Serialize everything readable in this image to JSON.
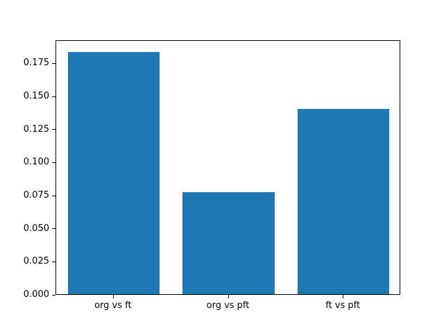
{
  "chart_data": {
    "type": "bar",
    "categories": [
      "org vs ft",
      "org vs pft",
      "ft vs pft"
    ],
    "values": [
      0.183,
      0.077,
      0.14
    ],
    "title": "",
    "xlabel": "",
    "ylabel": "",
    "ylim": [
      0,
      0.1925
    ],
    "xlim": [
      -0.5,
      2.5
    ],
    "bar_width_fraction": 0.8,
    "ytick_labels": [
      "0.000",
      "0.025",
      "0.050",
      "0.075",
      "0.100",
      "0.125",
      "0.150",
      "0.175"
    ],
    "ytick_values": [
      0.0,
      0.025,
      0.05,
      0.075,
      0.1,
      0.125,
      0.15,
      0.175
    ],
    "bar_color": "#1f77b4",
    "axis_color": "#000000",
    "background_color": "#ffffff",
    "grid": false,
    "legend": null
  }
}
